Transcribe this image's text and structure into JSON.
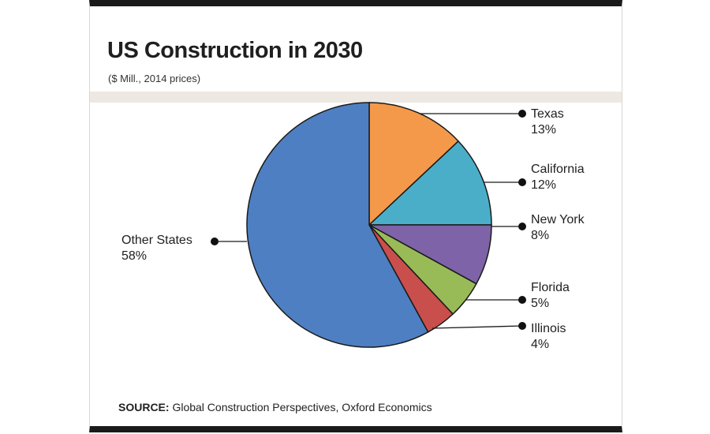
{
  "header": {
    "title": "US Construction in 2030",
    "subtitle": "($ Mill., 2014 prices)"
  },
  "footer": {
    "source_label": "SOURCE:",
    "source_text": "Global Construction Perspectives, Oxford Economics"
  },
  "chart_data": {
    "type": "pie",
    "title": "US Construction in 2030",
    "subtitle": "($ Mill., 2014 prices)",
    "slices": [
      {
        "label": "Texas",
        "value": 13,
        "display": "13%",
        "color": "#F4994A"
      },
      {
        "label": "California",
        "value": 12,
        "display": "12%",
        "color": "#4BAEC9"
      },
      {
        "label": "New York",
        "value": 8,
        "display": "8%",
        "color": "#7E63A8"
      },
      {
        "label": "Florida",
        "value": 5,
        "display": "5%",
        "color": "#98BB57"
      },
      {
        "label": "Illinois",
        "value": 4,
        "display": "4%",
        "color": "#C94F4C"
      },
      {
        "label": "Other States",
        "value": 58,
        "display": "58%",
        "color": "#4E7FC2"
      }
    ]
  }
}
